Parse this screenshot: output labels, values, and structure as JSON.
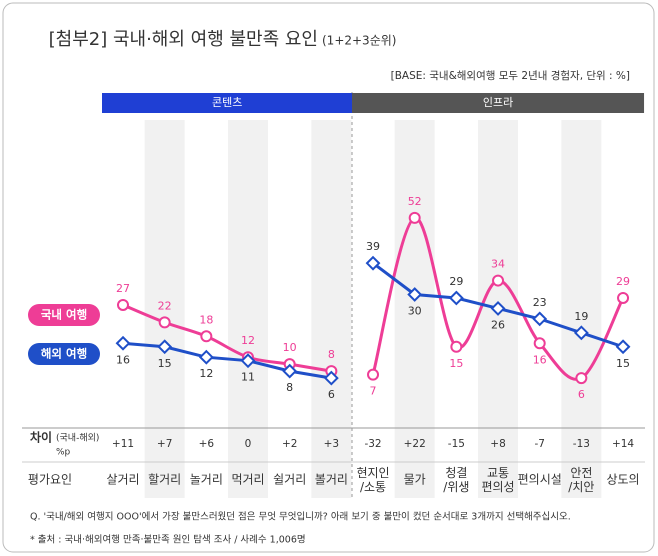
{
  "chart_data": {
    "type": "line",
    "title": "[첨부2] 국내·해외 여행 불만족 요인",
    "title_suffix": "(1+2+3순위)",
    "base_note": "[BASE: 국내&해외여행 모두 2년내 경험자, 단위 : %]",
    "groups": [
      {
        "name": "콘텐츠",
        "color": "#1f3fd4",
        "categories": [
          "살거리",
          "할거리",
          "놀거리",
          "먹거리",
          "쉴거리",
          "볼거리"
        ]
      },
      {
        "name": "인프라",
        "color": "#555555",
        "categories": [
          "현지인\n/소통",
          "물가",
          "청결\n/위생",
          "교통\n편의성",
          "편의시설",
          "안전\n/치안",
          "상도의"
        ]
      }
    ],
    "series": [
      {
        "name": "국내 여행",
        "color": "#ee3d96",
        "marker": "circle",
        "smooth": true,
        "values": [
          27,
          22,
          18,
          12,
          10,
          8,
          7,
          52,
          15,
          34,
          16,
          6,
          29
        ]
      },
      {
        "name": "해외 여행",
        "color": "#1f4fc8",
        "marker": "diamond",
        "smooth": false,
        "values": [
          16,
          15,
          12,
          11,
          8,
          6,
          39,
          30,
          29,
          26,
          23,
          19,
          15
        ]
      }
    ],
    "ylim": [
      0,
      60
    ],
    "difference": {
      "label": "차이",
      "sublabel": "(국내-해외)",
      "unit": "%p",
      "values": [
        11,
        7,
        6,
        0,
        2,
        3,
        -32,
        22,
        -15,
        8,
        -7,
        -13,
        14
      ],
      "value_labels": [
        "+11",
        "+7",
        "+6",
        "0",
        "+2",
        "+3",
        "-32",
        "+22",
        "-15",
        "+8",
        "-7",
        "-13",
        "+14"
      ]
    },
    "row_label": "평가요인",
    "question": "Q. '국내/해외 여행지 OOO'에서 가장 불만스러웠던 점은 무엇 무엇입니까? 아래 보기 중 불만이 컸던 순서대로 3개까지 선택해주십시오.",
    "source": "* 출처 : 국내·해외여행 만족·불만족 원인 탐색 조사 / 사례수 1,006명"
  }
}
